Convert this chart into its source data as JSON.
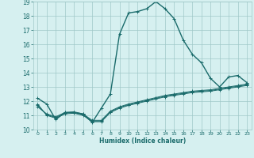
{
  "xlabel": "Humidex (Indice chaleur)",
  "bg_color": "#d6f0f0",
  "grid_color": "#a0c8c8",
  "line_color": "#1a6b6b",
  "xlim": [
    -0.5,
    23.5
  ],
  "ylim": [
    10,
    19
  ],
  "xticks": [
    0,
    1,
    2,
    3,
    4,
    5,
    6,
    7,
    8,
    9,
    10,
    11,
    12,
    13,
    14,
    15,
    16,
    17,
    18,
    19,
    20,
    21,
    22,
    23
  ],
  "yticks": [
    10,
    11,
    12,
    13,
    14,
    15,
    16,
    17,
    18,
    19
  ],
  "series": [
    {
      "x": [
        0,
        1,
        2,
        3,
        4,
        5,
        6,
        7,
        8,
        9,
        10,
        11,
        12,
        13,
        14,
        15,
        16,
        17,
        18,
        19,
        20,
        21,
        22,
        23
      ],
      "y": [
        12.2,
        11.8,
        10.7,
        11.2,
        11.2,
        11.1,
        10.5,
        11.5,
        12.5,
        16.7,
        18.2,
        18.3,
        18.5,
        19.0,
        18.5,
        17.8,
        16.3,
        15.3,
        14.7,
        13.6,
        13.0,
        13.7,
        13.8,
        13.3
      ]
    },
    {
      "x": [
        0,
        1,
        2,
        3,
        4,
        5,
        6,
        7,
        8,
        9,
        10,
        11,
        12,
        13,
        14,
        15,
        16,
        17,
        18,
        19,
        20,
        21,
        22,
        23
      ],
      "y": [
        11.8,
        11.0,
        10.8,
        11.1,
        11.15,
        11.0,
        10.55,
        10.55,
        11.2,
        11.5,
        11.7,
        11.85,
        12.0,
        12.15,
        12.3,
        12.4,
        12.5,
        12.6,
        12.65,
        12.7,
        12.8,
        12.9,
        13.0,
        13.1
      ]
    },
    {
      "x": [
        0,
        1,
        2,
        3,
        4,
        5,
        6,
        7,
        8,
        9,
        10,
        11,
        12,
        13,
        14,
        15,
        16,
        17,
        18,
        19,
        20,
        21,
        22,
        23
      ],
      "y": [
        11.7,
        11.05,
        10.85,
        11.15,
        11.2,
        11.05,
        10.6,
        10.6,
        11.25,
        11.55,
        11.75,
        11.9,
        12.05,
        12.2,
        12.35,
        12.45,
        12.55,
        12.65,
        12.7,
        12.75,
        12.85,
        12.95,
        13.05,
        13.15
      ]
    },
    {
      "x": [
        0,
        1,
        2,
        3,
        4,
        5,
        6,
        7,
        8,
        9,
        10,
        11,
        12,
        13,
        14,
        15,
        16,
        17,
        18,
        19,
        20,
        21,
        22,
        23
      ],
      "y": [
        11.6,
        11.1,
        10.9,
        11.2,
        11.25,
        11.1,
        10.65,
        10.65,
        11.3,
        11.6,
        11.8,
        11.95,
        12.1,
        12.25,
        12.4,
        12.5,
        12.6,
        12.7,
        12.75,
        12.8,
        12.9,
        13.0,
        13.1,
        13.2
      ]
    }
  ]
}
